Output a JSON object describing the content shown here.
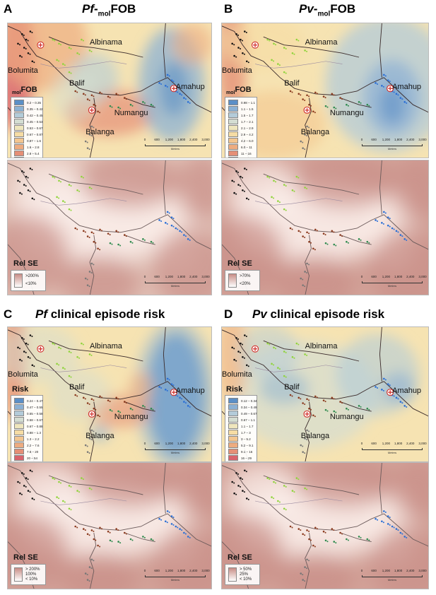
{
  "panels": [
    {
      "id": "A",
      "letter": "A",
      "title_parts": {
        "species": "Pf",
        "dash": "-",
        "sub": "mol",
        "rest": "FOB"
      },
      "legend_title": {
        "sub": "mol",
        "main": "FOB"
      },
      "legend_items": [
        {
          "label": "0.2 – 0.35",
          "color": "#5b8fc7"
        },
        {
          "label": "0.35 – 0.42",
          "color": "#8cb1d4"
        },
        {
          "label": "0.42 – 0.45",
          "color": "#b3cbd9"
        },
        {
          "label": "0.45 – 0.53",
          "color": "#d4ddd2"
        },
        {
          "label": "0.53 – 0.67",
          "color": "#efe6bd"
        },
        {
          "label": "0.67 – 0.87",
          "color": "#f6dca4"
        },
        {
          "label": "0.87 – 1.6",
          "color": "#f3c690"
        },
        {
          "label": "1.6 – 2.8",
          "color": "#eeac80"
        },
        {
          "label": "2.8 – 5.4",
          "color": "#e58f76"
        },
        {
          "label": "5.4 – 11",
          "color": "#d9636c"
        }
      ],
      "se_legend": {
        "title": "Rel SE",
        "labels": [
          ">200%",
          "<10%"
        ]
      }
    },
    {
      "id": "B",
      "letter": "B",
      "title_parts": {
        "species": "Pv",
        "dash": "-",
        "sub": "mol",
        "rest": "FOB"
      },
      "legend_title": {
        "sub": "mol",
        "main": "FOB"
      },
      "legend_items": [
        {
          "label": "0.98 – 1.1",
          "color": "#5b8fc7"
        },
        {
          "label": "1.1 – 1.5",
          "color": "#8cb1d4"
        },
        {
          "label": "1.5 – 1.7",
          "color": "#b3cbd9"
        },
        {
          "label": "1.7 – 2.1",
          "color": "#d4ddd2"
        },
        {
          "label": "2.1 – 2.9",
          "color": "#efe6bd"
        },
        {
          "label": "2.9 – 4.2",
          "color": "#f6dca4"
        },
        {
          "label": "4.2 – 6.0",
          "color": "#f3c690"
        },
        {
          "label": "6.0 – 11",
          "color": "#eeac80"
        },
        {
          "label": "11 – 16",
          "color": "#e58f76"
        },
        {
          "label": "16 – 21",
          "color": "#d9636c"
        }
      ],
      "se_legend": {
        "title": "Rel SE",
        "labels": [
          ">70%",
          "<20%"
        ]
      }
    },
    {
      "id": "C",
      "letter": "C",
      "title_parts": {
        "species": "Pf",
        "dash": "",
        "sub": "",
        "rest": " clinical episode risk"
      },
      "legend_title": {
        "sub": "",
        "main": "Risk"
      },
      "legend_items": [
        {
          "label": "0.24 – 0.47",
          "color": "#5b8fc7"
        },
        {
          "label": "0.47 – 0.55",
          "color": "#8cb1d4"
        },
        {
          "label": "0.55 – 0.58",
          "color": "#b3cbd9"
        },
        {
          "label": "0.58 – 0.67",
          "color": "#d4ddd2"
        },
        {
          "label": "0.67 – 0.88",
          "color": "#efe6bd"
        },
        {
          "label": "0.88 – 1.3",
          "color": "#f6dca4"
        },
        {
          "label": "1.3 – 2.2",
          "color": "#f3c690"
        },
        {
          "label": "2.2 – 7.6",
          "color": "#eeac80"
        },
        {
          "label": "7.6 – 20",
          "color": "#e58f76"
        },
        {
          "label": "20 – 54",
          "color": "#d9636c"
        }
      ],
      "se_legend": {
        "title": "Rel SE",
        "labels": [
          "> 200%",
          "100%",
          "< 10%"
        ]
      }
    },
    {
      "id": "D",
      "letter": "D",
      "title_parts": {
        "species": "Pv",
        "dash": "",
        "sub": "",
        "rest": " clinical episode risk"
      },
      "legend_title": {
        "sub": "",
        "main": "Risk"
      },
      "legend_items": [
        {
          "label": "0.12 – 0.34",
          "color": "#5b8fc7"
        },
        {
          "label": "0.34 – 0.49",
          "color": "#8cb1d4"
        },
        {
          "label": "0.49 – 0.67",
          "color": "#b3cbd9"
        },
        {
          "label": "0.67 – 1.1",
          "color": "#d4ddd2"
        },
        {
          "label": "1.1 – 1.7",
          "color": "#efe6bd"
        },
        {
          "label": "1.7 – 3",
          "color": "#f6dca4"
        },
        {
          "label": "3 – 5.2",
          "color": "#f3c690"
        },
        {
          "label": "5.2 – 9.1",
          "color": "#eeac80"
        },
        {
          "label": "9.1 – 16",
          "color": "#e58f76"
        },
        {
          "label": "16 – 29",
          "color": "#d9636c"
        }
      ],
      "se_legend": {
        "title": "Rel SE",
        "labels": [
          "> 50%",
          "25%",
          "< 10%"
        ]
      }
    }
  ],
  "places": {
    "albinama": "Albinama",
    "bolumita": "Bolumita",
    "balif": "Balif",
    "amahup": "Amahup",
    "numangu": "Numangu",
    "balanga": "Balanga"
  },
  "scalebar": {
    "ticks": [
      "0",
      "600",
      "1,200",
      "1,800",
      "2,400",
      "3,000"
    ],
    "units": "Meters"
  },
  "colors": {
    "map_base": "#f6e3b2",
    "village_bolumita": "#111111",
    "village_albinama": "#8fd43a",
    "village_balif": "#8b3a1e",
    "village_amahup": "#2a6fd6",
    "village_numangu": "#2d8a4d",
    "village_balanga": "#777777",
    "se_high": "#c98d86",
    "se_low": "#ffffff"
  }
}
